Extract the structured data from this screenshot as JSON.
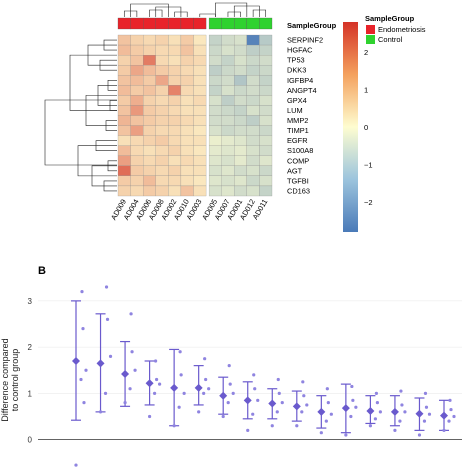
{
  "panels": {
    "b_label": "B"
  },
  "chart_data": [
    {
      "type": "heatmap",
      "title": "",
      "columns": [
        "AD009",
        "AD004",
        "AD006",
        "AD008",
        "AD002",
        "AD010",
        "AD003",
        "AD005",
        "AD007",
        "AD001",
        "AD012",
        "AD011"
      ],
      "column_groups": [
        "Endometriosis",
        "Endometriosis",
        "Endometriosis",
        "Endometriosis",
        "Endometriosis",
        "Endometriosis",
        "Endometriosis",
        "Control",
        "Control",
        "Control",
        "Control",
        "Control"
      ],
      "rows": [
        "SERPINF2",
        "HGFAC",
        "TP53",
        "DKK3",
        "IGFBP4",
        "ANGPT4",
        "GPX4",
        "LUM",
        "MMP2",
        "TIMP1",
        "EGFR",
        "S100A8",
        "COMP",
        "AGT",
        "TGFBI",
        "CD163"
      ],
      "values": [
        [
          0.8,
          0.6,
          0.5,
          0.6,
          0.4,
          0.7,
          0.3,
          -0.9,
          -0.7,
          -0.6,
          -2.6,
          -1.1
        ],
        [
          0.9,
          0.7,
          0.6,
          0.5,
          0.5,
          0.8,
          0.4,
          -0.8,
          -0.6,
          -0.7,
          -1.0,
          -0.9
        ],
        [
          0.6,
          0.8,
          1.8,
          0.5,
          0.4,
          0.6,
          0.5,
          -0.7,
          -0.9,
          -0.6,
          -0.8,
          -0.7
        ],
        [
          0.7,
          1.2,
          0.9,
          0.7,
          0.6,
          0.5,
          0.4,
          -1.0,
          -0.8,
          -0.7,
          -0.9,
          -0.8
        ],
        [
          0.8,
          0.9,
          0.7,
          1.2,
          0.6,
          0.6,
          0.4,
          -0.8,
          -0.7,
          -1.2,
          -0.7,
          -0.9
        ],
        [
          0.9,
          0.7,
          0.8,
          0.6,
          1.7,
          0.5,
          0.4,
          -0.9,
          -0.6,
          -0.8,
          -0.7,
          -0.8
        ],
        [
          0.7,
          1.1,
          0.6,
          0.5,
          0.6,
          0.4,
          0.5,
          -0.6,
          -1.0,
          -0.7,
          -0.8,
          -0.6
        ],
        [
          0.8,
          1.4,
          0.7,
          0.6,
          0.5,
          0.4,
          0.4,
          -0.7,
          -0.8,
          -0.9,
          -0.6,
          -0.7
        ],
        [
          1.0,
          0.8,
          0.7,
          0.6,
          0.6,
          0.5,
          0.4,
          -0.7,
          -0.7,
          -0.8,
          -1.0,
          -0.6
        ],
        [
          0.8,
          1.3,
          0.6,
          0.5,
          0.5,
          0.4,
          0.3,
          -0.6,
          -0.8,
          -0.7,
          -0.7,
          -0.8
        ],
        [
          0.4,
          0.5,
          0.6,
          0.7,
          0.5,
          0.4,
          0.4,
          -0.3,
          -0.4,
          -0.5,
          -0.7,
          -0.6
        ],
        [
          0.9,
          0.5,
          0.4,
          0.5,
          0.6,
          0.4,
          0.3,
          -0.4,
          -0.5,
          -0.4,
          -0.6,
          -0.7
        ],
        [
          1.3,
          0.6,
          0.5,
          0.6,
          0.4,
          0.5,
          0.4,
          -0.5,
          -0.6,
          -0.4,
          -0.7,
          -0.5
        ],
        [
          2.0,
          0.7,
          0.6,
          0.5,
          0.6,
          0.4,
          0.4,
          -0.6,
          -0.5,
          -0.7,
          -0.6,
          -0.8
        ],
        [
          0.7,
          0.6,
          0.9,
          0.5,
          0.5,
          0.4,
          0.3,
          -0.5,
          -0.6,
          -0.5,
          -0.8,
          -0.6
        ],
        [
          0.6,
          0.5,
          0.7,
          0.6,
          0.4,
          0.8,
          0.4,
          -0.6,
          -0.5,
          -0.7,
          -0.6,
          -0.9
        ]
      ],
      "colorbar": {
        "ticks": [
          2,
          1,
          0,
          -1,
          -2
        ],
        "range": [
          -2.8,
          2.8
        ],
        "low_color": "#4a7ab8",
        "mid_color": "#fefdd0",
        "high_color": "#d43327"
      },
      "legend": {
        "title": "SampleGroup",
        "items": [
          {
            "label": "Endometriosis",
            "color": "#e8232a"
          },
          {
            "label": "Control",
            "color": "#2fd22f"
          }
        ]
      },
      "annotation_track_label": "SampleGroup"
    },
    {
      "type": "scatter",
      "title": "",
      "ylabel": "Difference compared to control group",
      "ylabel_lines": [
        "Difference compared",
        "to control group"
      ],
      "xlabel": "",
      "ylim": [
        -0.7,
        3.3
      ],
      "yticks": [
        0,
        1,
        2,
        3
      ],
      "reference_line": 0,
      "point_color": "#6a5acd",
      "groups": [
        {
          "mean": 1.7,
          "lower": 0.42,
          "upper": 3.0,
          "points": [
            3.2,
            2.4,
            1.5,
            1.3,
            0.8,
            -0.55
          ]
        },
        {
          "mean": 1.65,
          "lower": 0.6,
          "upper": 2.72,
          "points": [
            3.3,
            2.6,
            1.8,
            1.0,
            0.6
          ]
        },
        {
          "mean": 1.42,
          "lower": 0.72,
          "upper": 2.12,
          "points": [
            2.72,
            1.9,
            1.5,
            1.1,
            0.8
          ]
        },
        {
          "mean": 1.22,
          "lower": 0.75,
          "upper": 1.7,
          "points": [
            1.7,
            1.3,
            1.2,
            1.0,
            0.5
          ]
        },
        {
          "mean": 1.12,
          "lower": 0.3,
          "upper": 1.95,
          "points": [
            1.9,
            1.4,
            1.0,
            0.7,
            0.3
          ]
        },
        {
          "mean": 1.12,
          "lower": 0.75,
          "upper": 1.6,
          "points": [
            1.75,
            1.3,
            1.1,
            1.0,
            0.6
          ]
        },
        {
          "mean": 0.95,
          "lower": 0.55,
          "upper": 1.35,
          "points": [
            1.6,
            1.2,
            1.0,
            0.8,
            0.5
          ]
        },
        {
          "mean": 0.85,
          "lower": 0.45,
          "upper": 1.25,
          "points": [
            1.4,
            1.1,
            0.85,
            0.55,
            0.2
          ]
        },
        {
          "mean": 0.78,
          "lower": 0.45,
          "upper": 1.1,
          "points": [
            1.3,
            1.0,
            0.8,
            0.6,
            0.3
          ]
        },
        {
          "mean": 0.72,
          "lower": 0.4,
          "upper": 1.05,
          "points": [
            1.25,
            0.95,
            0.75,
            0.6,
            0.3
          ]
        },
        {
          "mean": 0.6,
          "lower": 0.25,
          "upper": 0.95,
          "points": [
            1.1,
            0.8,
            0.55,
            0.4,
            0.15
          ]
        },
        {
          "mean": 0.68,
          "lower": 0.15,
          "upper": 1.2,
          "points": [
            1.15,
            0.85,
            0.7,
            0.5,
            0.1
          ]
        },
        {
          "mean": 0.62,
          "lower": 0.35,
          "upper": 0.95,
          "points": [
            1.0,
            0.8,
            0.6,
            0.45,
            0.3
          ]
        },
        {
          "mean": 0.6,
          "lower": 0.3,
          "upper": 0.95,
          "points": [
            1.05,
            0.75,
            0.6,
            0.4,
            0.2
          ]
        },
        {
          "mean": 0.56,
          "lower": 0.2,
          "upper": 0.9,
          "points": [
            1.0,
            0.7,
            0.55,
            0.4,
            0.1
          ]
        },
        {
          "mean": 0.52,
          "lower": 0.2,
          "upper": 0.85,
          "points": [
            0.85,
            0.65,
            0.5,
            0.4,
            0.2
          ]
        }
      ]
    }
  ]
}
